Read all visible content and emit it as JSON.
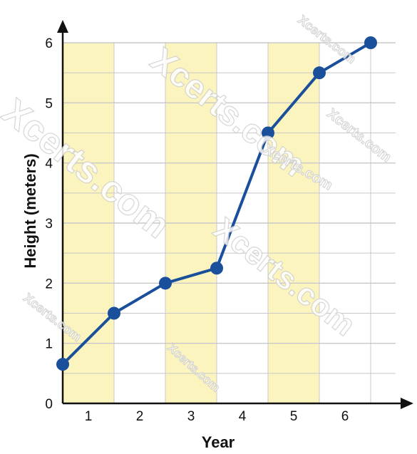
{
  "chart_data": {
    "type": "line",
    "title": "",
    "xlabel": "Year",
    "ylabel": "Height (meters)",
    "x_tick_labels": [
      "1",
      "2",
      "3",
      "4",
      "5",
      "6"
    ],
    "y_tick_labels": [
      "0",
      "1",
      "2",
      "3",
      "4",
      "5",
      "6"
    ],
    "xlim": [
      0,
      6.5
    ],
    "ylim": [
      0,
      6
    ],
    "grid": true,
    "shaded_columns": [
      1,
      3,
      5
    ],
    "x": [
      0,
      1,
      2,
      3,
      4,
      5,
      6
    ],
    "values": [
      0.65,
      1.5,
      2.0,
      2.25,
      4.5,
      5.5,
      6.0
    ],
    "colors": {
      "line": "#1a4f9c",
      "shade": "#fbf4bf",
      "grid": "#c8c8c8"
    }
  },
  "watermarks": [
    "Xcerts.com",
    "Xcerts.com",
    "Xcerts.com",
    "Xcerts.com",
    "Xcerts.com",
    "Xcerts.com",
    "Xcerts.com",
    "Xcerts.com"
  ]
}
